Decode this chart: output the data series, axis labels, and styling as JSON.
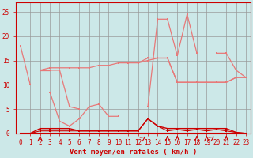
{
  "x": [
    0,
    1,
    2,
    3,
    4,
    5,
    6,
    7,
    8,
    9,
    10,
    11,
    12,
    13,
    14,
    15,
    16,
    17,
    18,
    19,
    20,
    21,
    22,
    23
  ],
  "series1": [
    18,
    10,
    null,
    8.5,
    2.5,
    1.5,
    3,
    5.5,
    6,
    3.5,
    3.5,
    null,
    null,
    5.5,
    23.5,
    23.5,
    16,
    24.5,
    16.5,
    null,
    16.5,
    16.5,
    13,
    11.5
  ],
  "series2": [
    null,
    null,
    13,
    13,
    null,
    null,
    null,
    null,
    null,
    null,
    null,
    null,
    null,
    null,
    null,
    null,
    null,
    null,
    null,
    null,
    null,
    null,
    null,
    null
  ],
  "series3": [
    null,
    null,
    13,
    13,
    13,
    5.5,
    5,
    null,
    null,
    null,
    null,
    null,
    null,
    null,
    null,
    null,
    null,
    null,
    null,
    null,
    null,
    null,
    null,
    null
  ],
  "series4": [
    null,
    null,
    13,
    13.5,
    13.5,
    13.5,
    13.5,
    13.5,
    14,
    14,
    14.5,
    14.5,
    14.5,
    15,
    15.5,
    15.5,
    10.5,
    10.5,
    10.5,
    10.5,
    10.5,
    10.5,
    11.5,
    11.5
  ],
  "series5": [
    null,
    null,
    null,
    null,
    null,
    null,
    null,
    null,
    null,
    null,
    null,
    null,
    14.5,
    15.5,
    15.5,
    15.5,
    10.5,
    10.5,
    10.5,
    10.5,
    10.5,
    10.5,
    11.5,
    11.5
  ],
  "series_red1": [
    0,
    0,
    1,
    1,
    1,
    1,
    0.5,
    0.5,
    0.5,
    0.5,
    0.5,
    0.5,
    0.5,
    3,
    1.5,
    1,
    1,
    1,
    1,
    1,
    1,
    1,
    0.2,
    0
  ],
  "series_red2": [
    0,
    0,
    0,
    0,
    0,
    0,
    0,
    0,
    0,
    0,
    0,
    0,
    0,
    0,
    0,
    0,
    0,
    0,
    0,
    0,
    0,
    0,
    0,
    0
  ],
  "series_red3": [
    0,
    0,
    0.5,
    0.5,
    0.5,
    0.5,
    0.5,
    0.5,
    0.5,
    0.5,
    0.5,
    0.5,
    0.5,
    3,
    1.5,
    0.5,
    0.8,
    0.5,
    0.8,
    0.5,
    0.8,
    0.5,
    0.2,
    0
  ],
  "arrows_down": [
    2,
    15,
    16,
    18,
    19,
    21
  ],
  "arrows_curvy": [
    13,
    20
  ],
  "bg_color": "#cce8e8",
  "grid_color": "#999999",
  "line_light": "#e87878",
  "line_dark": "#cc0000",
  "xlabel": "Vent moyen/en rafales ( km/h )",
  "ylim": [
    0,
    27
  ],
  "xlim": [
    -0.5,
    23.5
  ],
  "yticks": [
    0,
    5,
    10,
    15,
    20,
    25
  ],
  "xticks": [
    0,
    1,
    2,
    3,
    4,
    5,
    6,
    7,
    8,
    9,
    10,
    11,
    12,
    13,
    14,
    15,
    16,
    17,
    18,
    19,
    20,
    21,
    22,
    23
  ]
}
